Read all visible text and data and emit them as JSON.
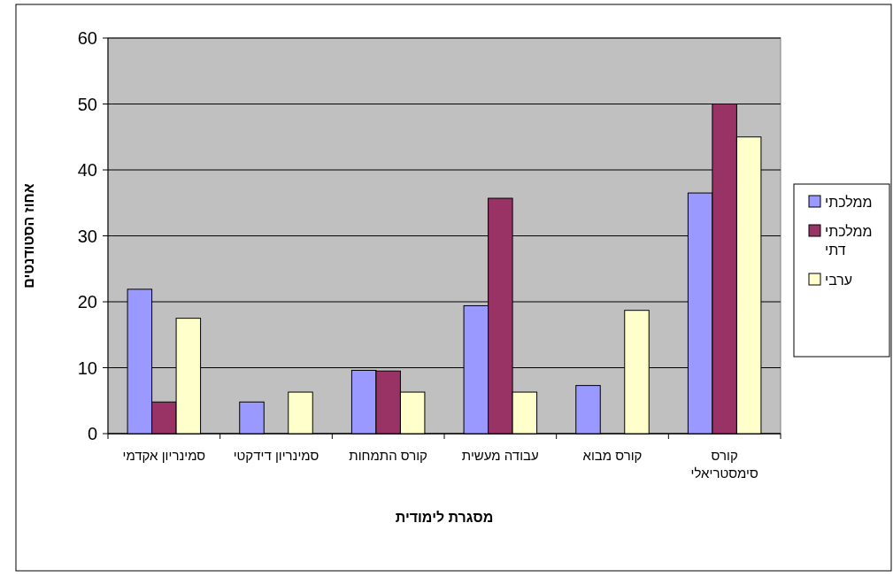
{
  "chart_data": {
    "type": "bar",
    "xlabel": "מסגרת לימודית",
    "ylabel": "אחוז הסטודנטים",
    "categories": [
      "סמינריון אקדמי",
      "סמינריון דידקטי",
      "קורס התמחות",
      "עבודה מעשית",
      "קורס מבוא",
      "קורס סימסטריאלי"
    ],
    "series": [
      {
        "name": "ממלכתי",
        "color": "#9999ff",
        "values": [
          21.9,
          4.8,
          9.6,
          19.4,
          7.3,
          36.5
        ]
      },
      {
        "name": "ממלכתי דתי",
        "color": "#993366",
        "values": [
          4.8,
          0,
          9.5,
          35.7,
          0,
          50
        ]
      },
      {
        "name": "ערבי",
        "color": "#ffffcc",
        "values": [
          17.5,
          6.3,
          6.3,
          6.3,
          18.7,
          45
        ]
      }
    ],
    "ylim": [
      0,
      60
    ],
    "yticks": [
      0,
      10,
      20,
      30,
      40,
      50,
      60
    ],
    "grid": "y",
    "legend": "right"
  }
}
